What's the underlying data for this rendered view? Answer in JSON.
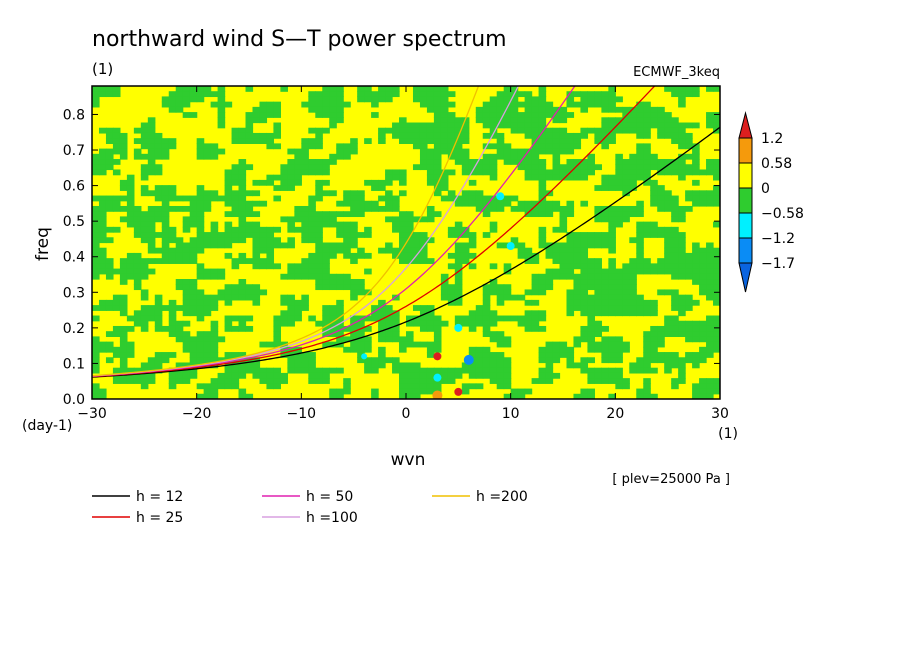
{
  "chart_data": {
    "type": "heatmap",
    "title": "northward wind S—T power spectrum",
    "title_units": "(1)",
    "dataset": "ECMWF_3keq",
    "xlabel": "wvn",
    "ylabel": "freq",
    "x_units": "(1)",
    "y_units": "(day-1)",
    "xlim": [
      -30,
      30
    ],
    "ylim": [
      0.0,
      0.88
    ],
    "x_ticks": [
      "−30",
      "−20",
      "−10",
      "0",
      "10",
      "20",
      "30"
    ],
    "x_tick_values": [
      -30,
      -20,
      -10,
      0,
      10,
      20,
      30
    ],
    "y_ticks": [
      "0.0",
      "0.1",
      "0.2",
      "0.3",
      "0.4",
      "0.5",
      "0.6",
      "0.7",
      "0.8"
    ],
    "y_tick_values": [
      0.0,
      0.1,
      0.2,
      0.3,
      0.4,
      0.5,
      0.6,
      0.7,
      0.8
    ],
    "colorbar": {
      "labels": [
        "1.2",
        "0.58",
        "0",
        "−0.58",
        "−1.2",
        "−1.7"
      ],
      "levels": [
        1.2,
        0.58,
        0,
        -0.58,
        -1.2,
        -1.7
      ],
      "colors": [
        "#dc1f1f",
        "#f59a0c",
        "#ffff00",
        "#2fcc2f",
        "#00f0ff",
        "#0a8cf5",
        "#0a64e0"
      ]
    },
    "level_note": "[ plev=25000 Pa ]",
    "curves": [
      {
        "label": "h = 12",
        "color": "#000000",
        "h": 12
      },
      {
        "label": "h = 25",
        "color": "#e00000",
        "h": 25
      },
      {
        "label": "h = 50",
        "color": "#e020b0",
        "h": 50
      },
      {
        "label": "h =100",
        "color": "#d8a0e0",
        "h": 100
      },
      {
        "label": "h =200",
        "color": "#f0c000",
        "h": 200
      }
    ]
  }
}
